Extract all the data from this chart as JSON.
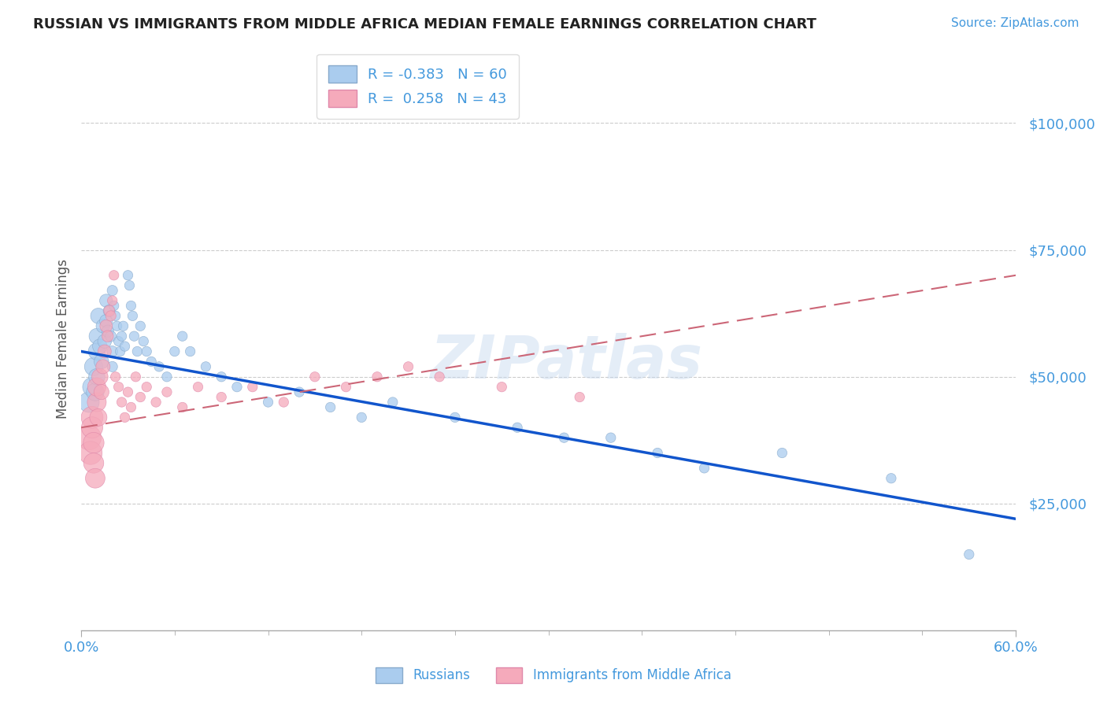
{
  "title": "RUSSIAN VS IMMIGRANTS FROM MIDDLE AFRICA MEDIAN FEMALE EARNINGS CORRELATION CHART",
  "source": "Source: ZipAtlas.com",
  "ylabel": "Median Female Earnings",
  "yticks": [
    25000,
    50000,
    75000,
    100000
  ],
  "ytick_labels": [
    "$25,000",
    "$50,000",
    "$75,000",
    "$100,000"
  ],
  "xlim": [
    0.0,
    0.6
  ],
  "ylim": [
    0,
    115000
  ],
  "legend_r1": "R = -0.383",
  "legend_n1": "N = 60",
  "legend_r2": "R =  0.258",
  "legend_n2": "N = 43",
  "color_russian": "#aaccee",
  "color_russian_edge": "#88aacc",
  "color_african": "#f5aabb",
  "color_african_edge": "#e088aa",
  "color_russian_line": "#1155cc",
  "color_african_line": "#cc6677",
  "color_title": "#222222",
  "color_axis_labels": "#4499dd",
  "color_source": "#4499dd",
  "watermark": "ZIPatlas",
  "russians_x": [
    0.005,
    0.007,
    0.008,
    0.009,
    0.01,
    0.01,
    0.01,
    0.011,
    0.012,
    0.013,
    0.014,
    0.015,
    0.016,
    0.016,
    0.017,
    0.018,
    0.019,
    0.02,
    0.02,
    0.02,
    0.021,
    0.022,
    0.023,
    0.024,
    0.025,
    0.026,
    0.027,
    0.028,
    0.03,
    0.031,
    0.032,
    0.033,
    0.034,
    0.036,
    0.038,
    0.04,
    0.042,
    0.045,
    0.05,
    0.055,
    0.06,
    0.065,
    0.07,
    0.08,
    0.09,
    0.1,
    0.12,
    0.14,
    0.16,
    0.18,
    0.2,
    0.24,
    0.28,
    0.31,
    0.34,
    0.37,
    0.4,
    0.45,
    0.52,
    0.57
  ],
  "russians_y": [
    45000,
    48000,
    52000,
    47000,
    55000,
    50000,
    58000,
    62000,
    56000,
    53000,
    60000,
    57000,
    65000,
    61000,
    59000,
    63000,
    58000,
    55000,
    52000,
    67000,
    64000,
    62000,
    60000,
    57000,
    55000,
    58000,
    60000,
    56000,
    70000,
    68000,
    64000,
    62000,
    58000,
    55000,
    60000,
    57000,
    55000,
    53000,
    52000,
    50000,
    55000,
    58000,
    55000,
    52000,
    50000,
    48000,
    45000,
    47000,
    44000,
    42000,
    45000,
    42000,
    40000,
    38000,
    38000,
    35000,
    32000,
    35000,
    30000,
    15000
  ],
  "russians_size": [
    350,
    300,
    280,
    260,
    240,
    220,
    200,
    200,
    180,
    180,
    160,
    160,
    140,
    140,
    120,
    120,
    100,
    100,
    90,
    90,
    80,
    80,
    80,
    80,
    80,
    80,
    80,
    80,
    80,
    80,
    80,
    80,
    80,
    80,
    80,
    80,
    80,
    80,
    80,
    80,
    80,
    80,
    80,
    80,
    80,
    80,
    80,
    80,
    80,
    80,
    80,
    80,
    80,
    80,
    80,
    80,
    80,
    80,
    80,
    80
  ],
  "africans_x": [
    0.005,
    0.006,
    0.007,
    0.007,
    0.008,
    0.008,
    0.009,
    0.01,
    0.01,
    0.011,
    0.012,
    0.013,
    0.014,
    0.015,
    0.016,
    0.017,
    0.018,
    0.019,
    0.02,
    0.021,
    0.022,
    0.024,
    0.026,
    0.028,
    0.03,
    0.032,
    0.035,
    0.038,
    0.042,
    0.048,
    0.055,
    0.065,
    0.075,
    0.09,
    0.11,
    0.13,
    0.15,
    0.17,
    0.19,
    0.21,
    0.23,
    0.27,
    0.32
  ],
  "africans_y": [
    38000,
    35000,
    42000,
    40000,
    37000,
    33000,
    30000,
    45000,
    48000,
    42000,
    50000,
    47000,
    52000,
    55000,
    60000,
    58000,
    63000,
    62000,
    65000,
    70000,
    50000,
    48000,
    45000,
    42000,
    47000,
    44000,
    50000,
    46000,
    48000,
    45000,
    47000,
    44000,
    48000,
    46000,
    48000,
    45000,
    50000,
    48000,
    50000,
    52000,
    50000,
    48000,
    46000
  ],
  "africans_size": [
    500,
    450,
    400,
    380,
    360,
    340,
    320,
    300,
    280,
    250,
    220,
    190,
    170,
    150,
    130,
    110,
    100,
    90,
    80,
    80,
    80,
    80,
    80,
    80,
    80,
    80,
    80,
    80,
    80,
    80,
    80,
    80,
    80,
    80,
    80,
    80,
    80,
    80,
    80,
    80,
    80,
    80,
    80
  ],
  "blue_line_x0": 0.0,
  "blue_line_y0": 55000,
  "blue_line_x1": 0.6,
  "blue_line_y1": 22000,
  "pink_line_x0": 0.0,
  "pink_line_y0": 40000,
  "pink_line_x1": 0.6,
  "pink_line_y1": 70000
}
